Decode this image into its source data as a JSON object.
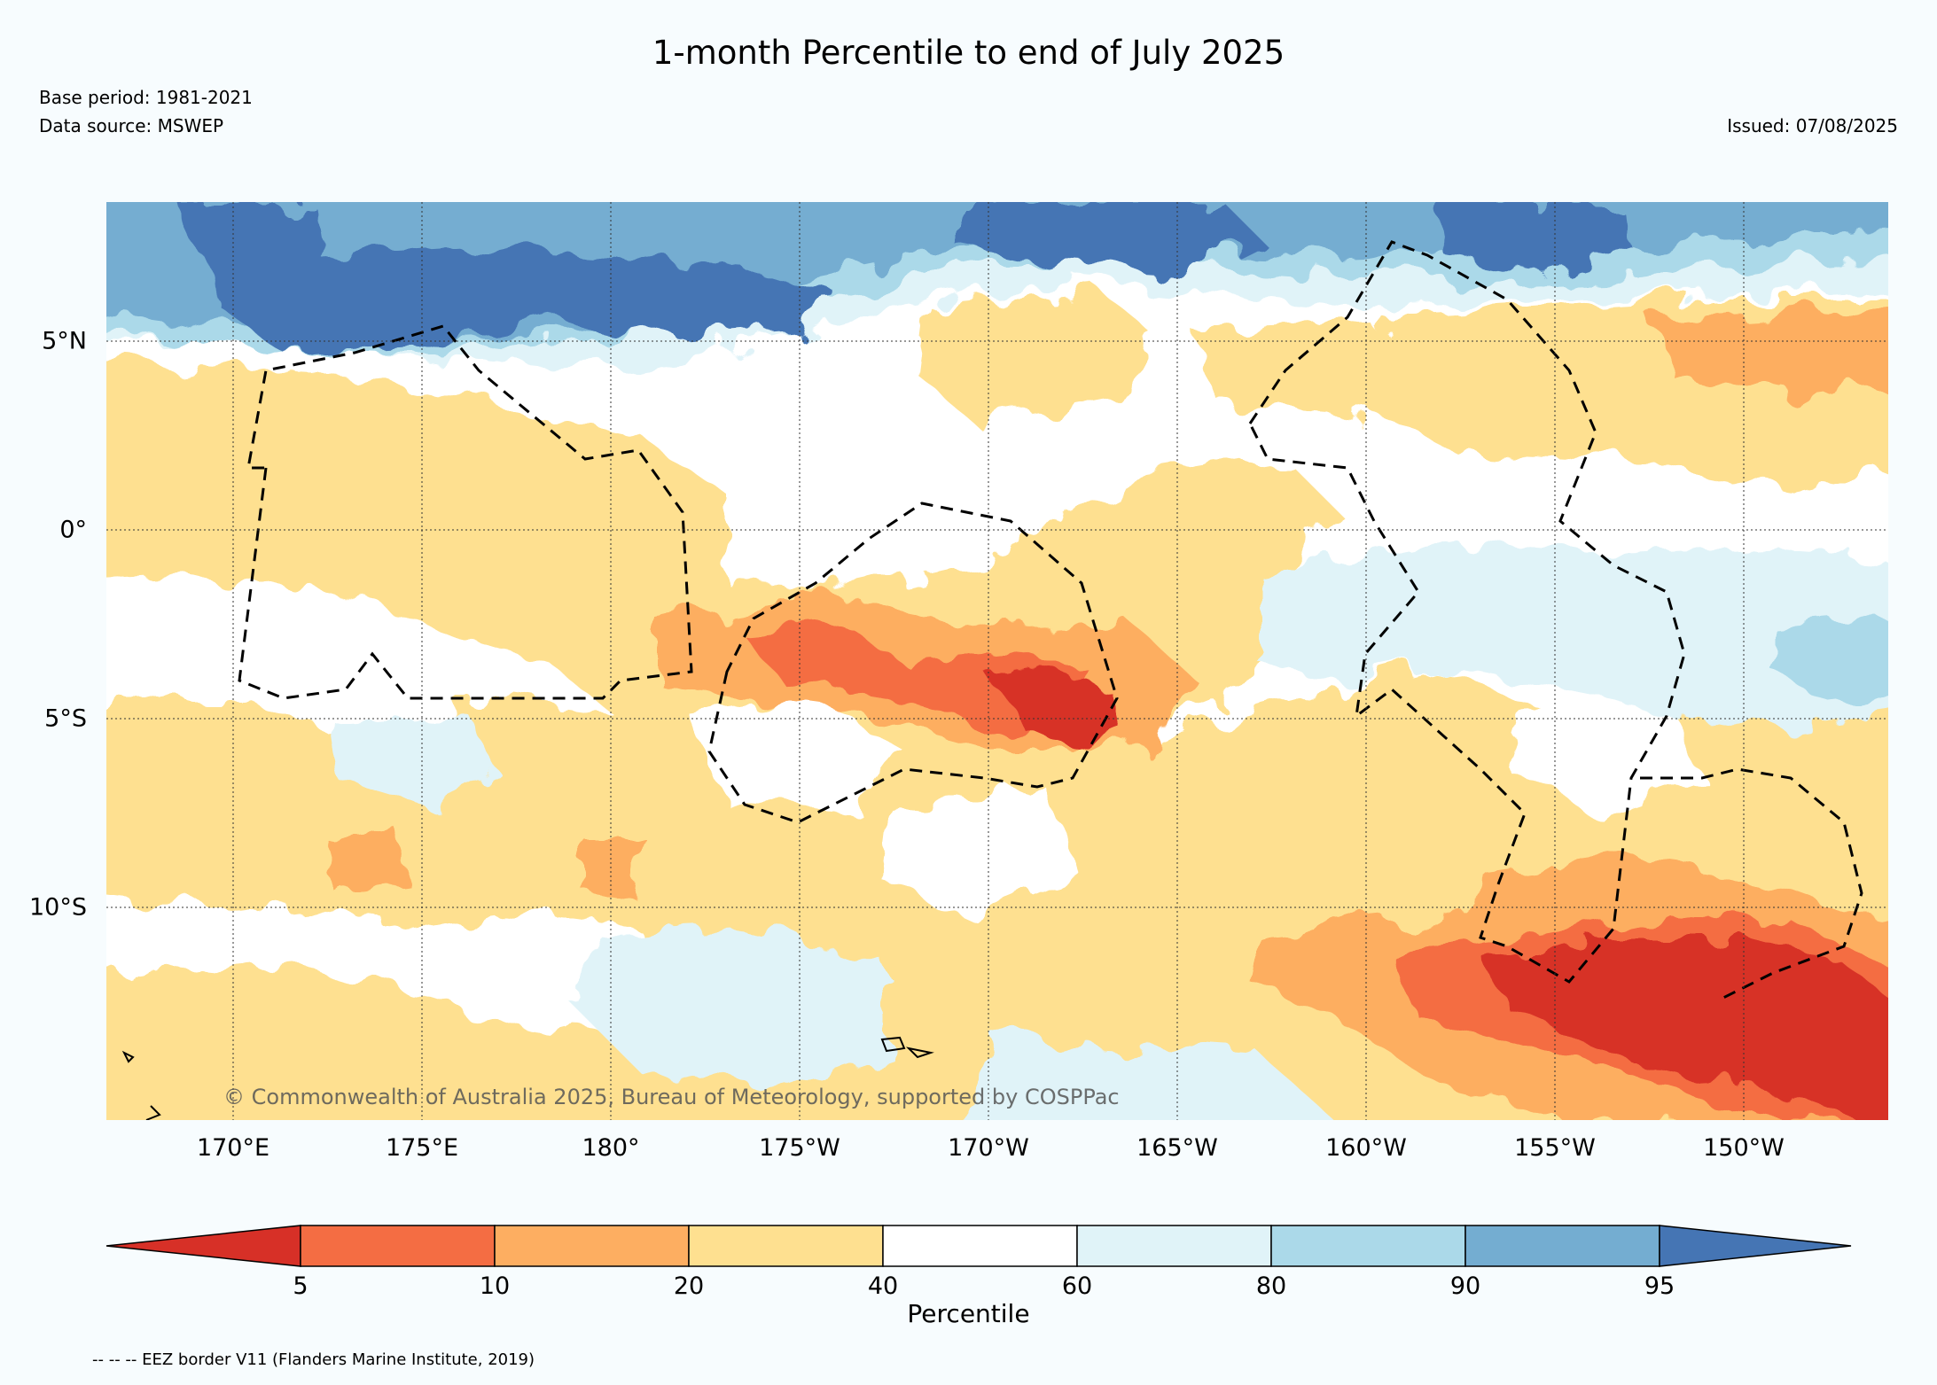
{
  "title": "1-month Percentile to end of July 2025",
  "base_period": "Base period: 1981-2021",
  "data_source": "Data source: MSWEP",
  "issued": "Issued: 07/08/2025",
  "copyright": "© Commonwealth of Australia 2025, Bureau of Meteorology, supported by COSPPac",
  "footnote": "-- -- -- EEZ border V11 (Flanders Marine Institute, 2019)",
  "map": {
    "lon_ticks": [
      "170°E",
      "175°E",
      "180°",
      "175°W",
      "170°W",
      "165°W",
      "160°W",
      "155°W",
      "150°W"
    ],
    "lat_ticks": [
      "5°N",
      "0°",
      "5°S",
      "10°S"
    ],
    "gridlines": true
  },
  "colorbar": {
    "label": "Percentile",
    "ticks": [
      "5",
      "10",
      "20",
      "40",
      "60",
      "80",
      "90",
      "95"
    ],
    "bins": [
      {
        "range": "<5",
        "color": "#d73027"
      },
      {
        "range": "5-10",
        "color": "#f46d43"
      },
      {
        "range": "10-20",
        "color": "#fdae61"
      },
      {
        "range": "20-40",
        "color": "#fee090"
      },
      {
        "range": "40-60",
        "color": "#ffffff"
      },
      {
        "range": "60-80",
        "color": "#e0f3f8"
      },
      {
        "range": "80-90",
        "color": "#abd9e9"
      },
      {
        "range": "90-95",
        "color": "#74add1"
      },
      {
        "range": ">95",
        "color": "#4575b4"
      }
    ]
  }
}
